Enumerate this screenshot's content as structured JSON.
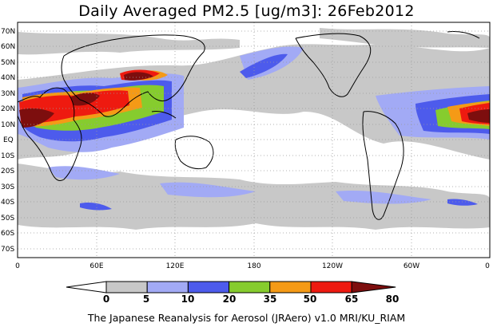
{
  "title": "Daily Averaged PM2.5 [ug/m3]: 26Feb2012",
  "footer": "The Japanese Reanalysis for Aerosol (JRAero) v1.0 MRI/KU_RIAM",
  "map": {
    "lat_labels": [
      "70N",
      "60N",
      "50N",
      "40N",
      "30N",
      "20N",
      "10N",
      "EQ",
      "10S",
      "20S",
      "30S",
      "40S",
      "50S",
      "60S",
      "70S"
    ],
    "lon_labels": [
      "0",
      "60E",
      "120E",
      "180",
      "120W",
      "60W",
      "0"
    ]
  },
  "colorbar": {
    "tick_labels": [
      "0",
      "5",
      "10",
      "20",
      "35",
      "50",
      "65",
      "80"
    ],
    "colors": [
      "#ffffff",
      "#c8c8c8",
      "#a2aaf5",
      "#4d5bec",
      "#86cc2e",
      "#f59a16",
      "#ee1a10",
      "#7d0e0e"
    ]
  }
}
